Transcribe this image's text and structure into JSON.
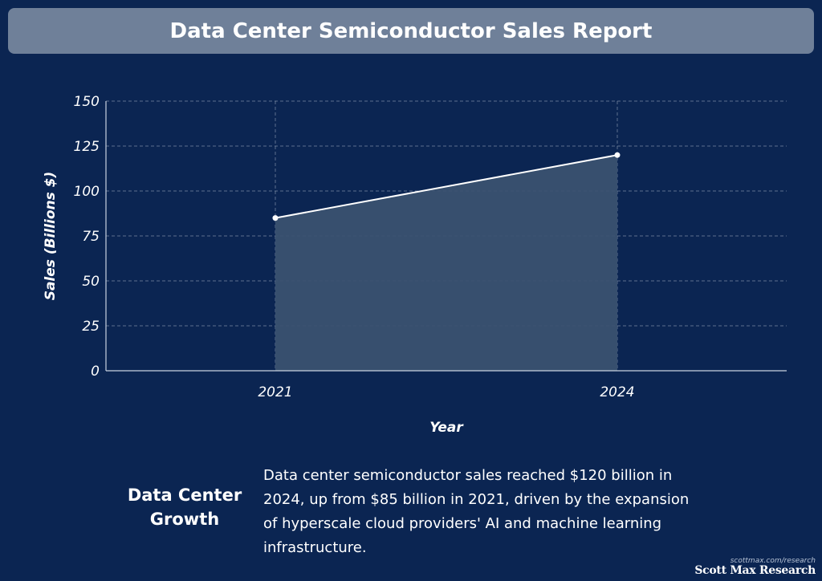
{
  "header": {
    "title": "Data Center Semiconductor Sales Report"
  },
  "chart_data": {
    "type": "area",
    "title": "Data Center Semiconductor Sales Report",
    "xlabel": "Year",
    "ylabel": "Sales (Billions $)",
    "categories": [
      "2021",
      "2024"
    ],
    "values": [
      85,
      120
    ],
    "ylim": [
      0,
      150
    ],
    "yticks": [
      0,
      25,
      50,
      75,
      100,
      125,
      150
    ],
    "grid": true,
    "legend": "none",
    "colors": {
      "line": "#ffffff",
      "fill": "#3a5170",
      "grid": "#7f90aa",
      "axis": "#c9d2e0"
    }
  },
  "summary": {
    "label": "Data Center Growth",
    "text": "Data center semiconductor sales reached $120 billion in 2024, up from $85 billion in 2021, driven by the expansion of hyperscale cloud providers' AI and machine learning infrastructure."
  },
  "credit": {
    "url": "scottmax.com/research",
    "name": "Scott Max Research"
  }
}
